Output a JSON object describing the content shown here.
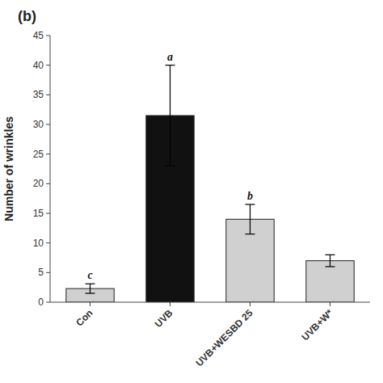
{
  "chart_data": {
    "type": "bar",
    "title": "(b)",
    "ylabel": "Number of wrinkles",
    "categories": [
      "Con",
      "UVB",
      "UVB+WESBD 25",
      "UVB+W*"
    ],
    "values": [
      2.3,
      31.5,
      14.0,
      7.0
    ],
    "errors": [
      0.8,
      8.5,
      2.5,
      1.0
    ],
    "colors": [
      "#d0d0d0",
      "#111111",
      "#d0d0d0",
      "#d0d0d0"
    ],
    "significance_labels": [
      "c",
      "a",
      "b",
      null
    ],
    "ylim": [
      0,
      45
    ],
    "yticks": [
      0,
      5,
      10,
      15,
      20,
      25,
      30,
      35,
      40,
      45
    ],
    "grid": false
  }
}
